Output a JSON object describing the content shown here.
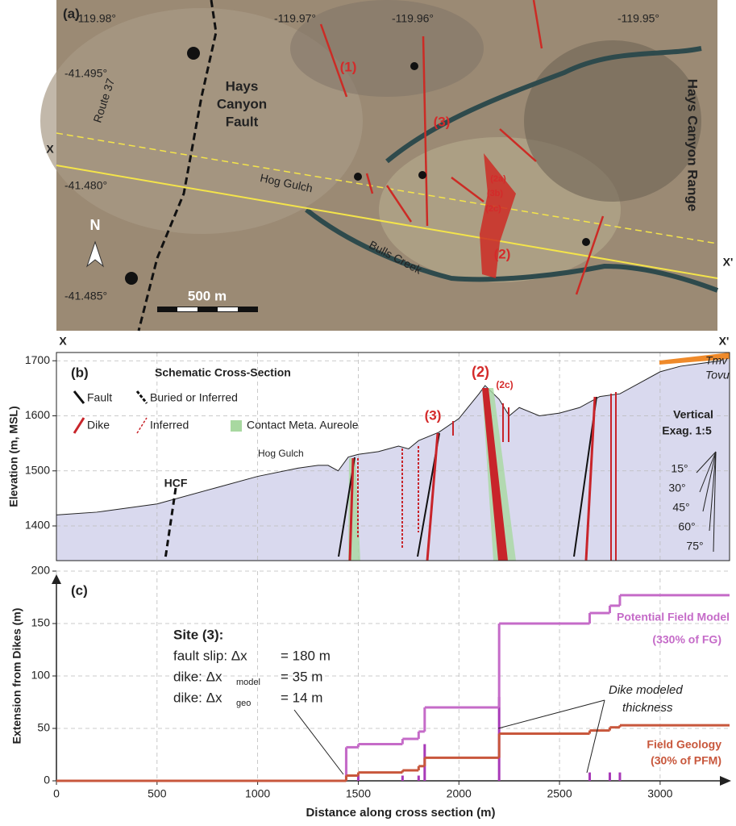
{
  "map": {
    "label": "(a)",
    "lon_labels": [
      "-119.98°",
      "-119.97°",
      "-119.96°",
      "-119.95°"
    ],
    "lat_labels": [
      "-41.495°",
      "-41.480°",
      "-41.485°"
    ],
    "x_start": "X",
    "x_end": "X'",
    "fault_name": [
      "Hays",
      "Canyon",
      "Fault"
    ],
    "range_name": "Hays Canyon Range",
    "route": "Route 37",
    "creek_1": "Hog Gulch",
    "creek_2": "Bulls Creek",
    "sites": [
      "(1)",
      "(3)",
      "(2a)",
      "(3b)",
      "(2c)",
      "(2)"
    ],
    "north": "N",
    "scale": "500 m"
  },
  "chart_data": [
    {
      "type": "area",
      "label": "(b)",
      "title": "Schematic Cross-Section",
      "ylabel": "Elevation (m, MSL)",
      "x_start": "X",
      "x_end": "X'",
      "x": [
        0,
        200,
        500,
        800,
        1000,
        1200,
        1300,
        1350,
        1400,
        1450,
        1500,
        1600,
        1700,
        1750,
        1800,
        1900,
        2000,
        2100,
        2130,
        2200,
        2250,
        2300,
        2400,
        2500,
        2600,
        2700,
        2800,
        2900,
        3000,
        3100,
        3200,
        3300,
        3345
      ],
      "values": [
        1420,
        1425,
        1440,
        1470,
        1490,
        1505,
        1510,
        1510,
        1500,
        1525,
        1530,
        1535,
        1545,
        1540,
        1555,
        1570,
        1595,
        1640,
        1655,
        1630,
        1600,
        1615,
        1600,
        1605,
        1615,
        1635,
        1640,
        1660,
        1680,
        1690,
        1695,
        1700,
        1710
      ],
      "color": "#d9d9ee",
      "xlim": [
        0,
        3345
      ],
      "ylim": [
        1337,
        1715
      ],
      "yticks": [
        1400,
        1500,
        1600,
        1700
      ],
      "legend": [
        "Fault",
        "Buried or Inferred",
        "Dike",
        "Inferred",
        "Contact Meta. Aureole"
      ],
      "annotations": {
        "hog": "Hog Gulch",
        "hcf": "HCF",
        "site3": "(3)",
        "site2": "(2)",
        "site2c": "(2c)",
        "tmv": "Tmv",
        "tovu": "Tovu",
        "vex": [
          "Vertical",
          "Exag. 1:5"
        ],
        "angles": [
          "15°",
          "30°",
          "45°",
          "60°",
          "75°"
        ]
      }
    },
    {
      "type": "step",
      "label": "(c)",
      "xlabel": "Distance along cross section (m)",
      "ylabel": "Extension from Dikes (m)",
      "xlim": [
        0,
        3345
      ],
      "ylim": [
        0,
        200
      ],
      "xticks": [
        0,
        500,
        1000,
        1500,
        2000,
        2500,
        3000
      ],
      "yticks": [
        0,
        50,
        100,
        150,
        200
      ],
      "grid": true,
      "x": [
        0,
        1440,
        1500,
        1720,
        1800,
        1830,
        2200,
        2650,
        2750,
        2800
      ],
      "series": [
        {
          "name": "Potential Field Model",
          "note": "(330% of FG)",
          "color": "#c56bc8",
          "values": [
            0,
            32,
            35,
            40,
            47,
            70,
            150,
            160,
            167,
            177
          ]
        },
        {
          "name": "Field Geology",
          "note": "(30% of PFM)",
          "color": "#c8573c",
          "values": [
            0,
            5,
            8,
            10,
            14,
            22,
            45,
            48,
            51,
            53
          ]
        }
      ],
      "dikes": {
        "color": "#a83ab8",
        "x": [
          1440,
          1500,
          1720,
          1800,
          1830,
          2200,
          2650,
          2750,
          2800
        ],
        "values": [
          30,
          5,
          5,
          5,
          35,
          80,
          8,
          8,
          8
        ]
      },
      "site": {
        "title": "Site (3):",
        "line1": "fault slip: Δx",
        "line1b": "= 180 m",
        "line2": "dike: Δx",
        "line2sub": "model",
        "line2b": "= 35 m",
        "line3": "dike: Δx",
        "line3sub": "geo",
        "line3b": "= 14 m"
      },
      "dike_note": [
        "Dike modeled",
        "thickness"
      ]
    }
  ]
}
